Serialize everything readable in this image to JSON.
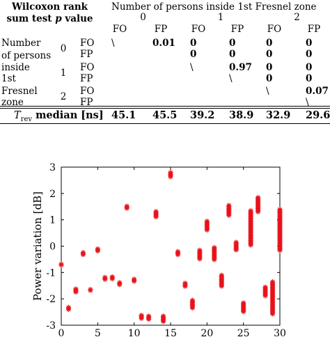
{
  "table": {
    "corner_line1": "Wilcoxon rank",
    "corner_line2_pre": "sum test ",
    "corner_line2_p": "p",
    "corner_line2_post": " value",
    "group_header": "Number of persons inside 1st Fresnel zone",
    "col_groups": [
      "0",
      "1",
      "2"
    ],
    "col_labels": [
      "FO",
      "FP",
      "FO",
      "FP",
      "FO",
      "FP"
    ],
    "row_header_lines": [
      "Number",
      "of persons",
      "inside",
      "1st",
      "Fresnel",
      "zone"
    ],
    "row_groups": [
      "0",
      "1",
      "2"
    ],
    "row_labels": [
      "FO",
      "FP",
      "FO",
      "FP",
      "FO",
      "FP"
    ],
    "cells": [
      [
        "\\",
        "0.01",
        "0",
        "0",
        "0",
        "0"
      ],
      [
        "",
        "",
        "0",
        "0",
        "0",
        "0"
      ],
      [
        "",
        "",
        "\\",
        "0.97",
        "0",
        "0"
      ],
      [
        "",
        "",
        "",
        "\\",
        "0",
        "0"
      ],
      [
        "",
        "",
        "",
        "",
        "\\",
        "0.07"
      ],
      [
        "",
        "",
        "",
        "",
        "",
        "\\"
      ]
    ],
    "median_label_T": "T",
    "median_label_sub": "rev",
    "median_label_rest": " median [ns]",
    "median_values": [
      "45.1",
      "45.5",
      "39.2",
      "38.9",
      "32.9",
      "29.6"
    ]
  },
  "chart_data": {
    "type": "scatter",
    "marker": "asterisk",
    "color": "#e8121a",
    "ylabel": "Power variation [dB]",
    "xlim": [
      0,
      30
    ],
    "ylim": [
      -3,
      3
    ],
    "xticks": [
      0,
      5,
      10,
      15,
      20,
      25,
      30
    ],
    "yticks": [
      -3,
      -2,
      -1,
      0,
      1,
      2,
      3
    ],
    "grid": false,
    "points": [
      {
        "x": 0,
        "y_min": -0.75,
        "y_max": -0.68
      },
      {
        "x": 1,
        "y_min": -2.42,
        "y_max": -2.32
      },
      {
        "x": 2,
        "y_min": -1.75,
        "y_max": -1.62
      },
      {
        "x": 3,
        "y_min": -0.33,
        "y_max": -0.24
      },
      {
        "x": 4,
        "y_min": -1.72,
        "y_max": -1.64
      },
      {
        "x": 5,
        "y_min": -0.22,
        "y_max": -0.1
      },
      {
        "x": 6,
        "y_min": -1.3,
        "y_max": -1.18
      },
      {
        "x": 7,
        "y_min": -1.28,
        "y_max": -1.16
      },
      {
        "x": 8,
        "y_min": -1.5,
        "y_max": -1.38
      },
      {
        "x": 9,
        "y_min": 1.4,
        "y_max": 1.52
      },
      {
        "x": 10,
        "y_min": -1.35,
        "y_max": -1.25
      },
      {
        "x": 11,
        "y_min": -2.78,
        "y_max": -2.62
      },
      {
        "x": 12,
        "y_min": -2.8,
        "y_max": -2.65
      },
      {
        "x": 13,
        "y_min": 1.1,
        "y_max": 1.32
      },
      {
        "x": 14,
        "y_min": -2.9,
        "y_max": -2.65
      },
      {
        "x": 15,
        "y_min": 2.62,
        "y_max": 2.8
      },
      {
        "x": 16,
        "y_min": -0.34,
        "y_max": -0.2
      },
      {
        "x": 17,
        "y_min": -1.55,
        "y_max": -1.4
      },
      {
        "x": 18,
        "y_min": -2.35,
        "y_max": -2.05
      },
      {
        "x": 19,
        "y_min": -0.5,
        "y_max": -0.15
      },
      {
        "x": 20,
        "y_min": 0.6,
        "y_max": 0.95
      },
      {
        "x": 21,
        "y_min": -0.55,
        "y_max": -0.05
      },
      {
        "x": 22,
        "y_min": -1.55,
        "y_max": -1.1
      },
      {
        "x": 23,
        "y_min": 1.15,
        "y_max": 1.55
      },
      {
        "x": 24,
        "y_min": -0.15,
        "y_max": 0.15
      },
      {
        "x": 25,
        "y_min": -2.5,
        "y_max": -2.15
      },
      {
        "x": 26,
        "y_min": 0.0,
        "y_max": 1.35
      },
      {
        "x": 27,
        "y_min": 1.3,
        "y_max": 1.85
      },
      {
        "x": 28,
        "y_min": -1.9,
        "y_max": -1.55
      },
      {
        "x": 29,
        "y_min": -2.6,
        "y_max": -1.35
      },
      {
        "x": 30,
        "y_min": -0.2,
        "y_max": 1.4
      }
    ]
  }
}
